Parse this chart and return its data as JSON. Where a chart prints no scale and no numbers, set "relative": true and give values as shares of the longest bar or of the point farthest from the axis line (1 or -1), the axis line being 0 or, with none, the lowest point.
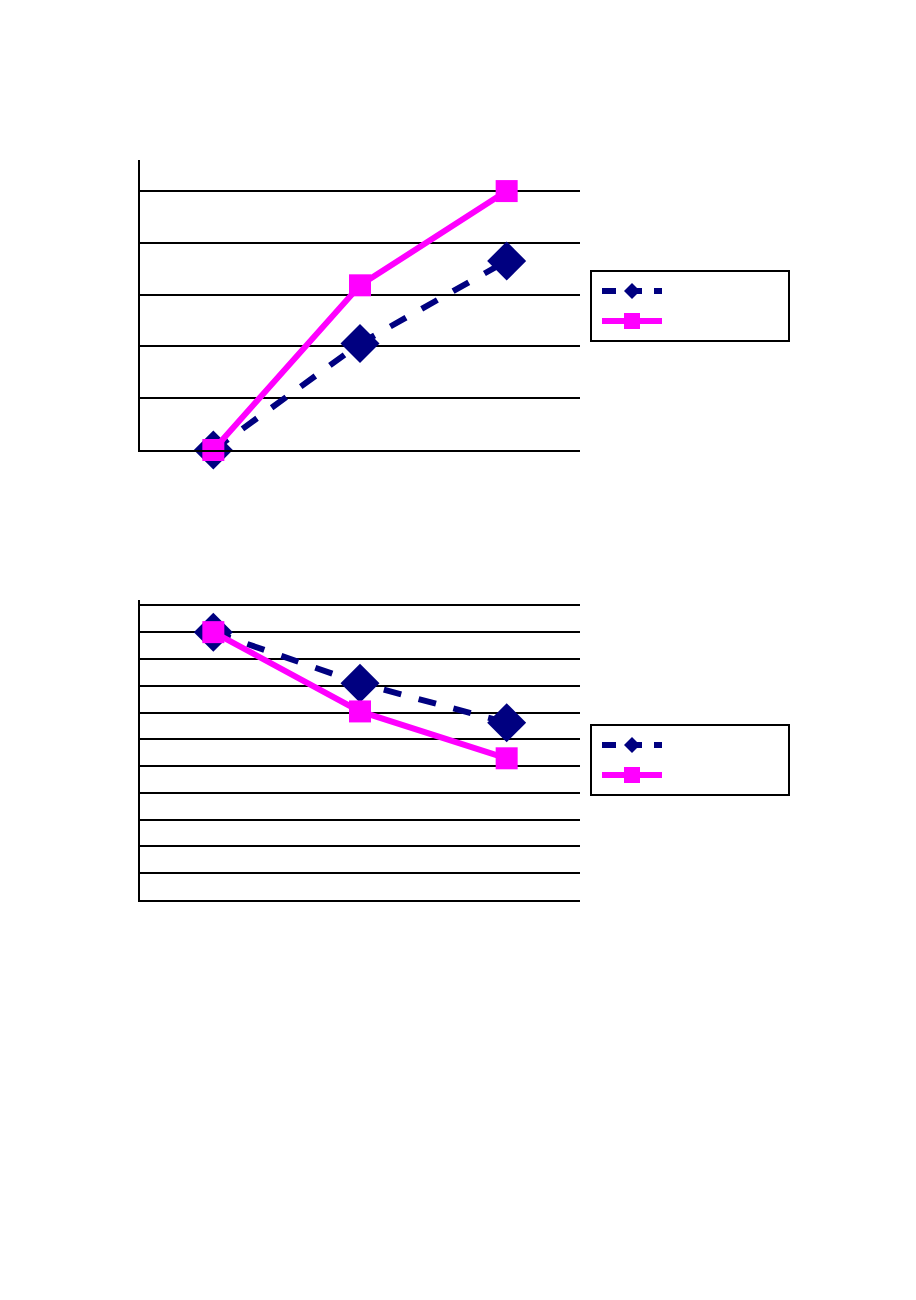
{
  "chart_data": [
    {
      "type": "line",
      "relative": true,
      "categories": [
        null,
        null,
        null
      ],
      "grid": "y",
      "series": [
        {
          "color": "#000080",
          "values": [
            0,
            0.411,
            0.73
          ],
          "marker": "diamond",
          "line_style": "dashed"
        },
        {
          "color": "#ff00ff",
          "values": [
            0,
            0.636,
            1
          ],
          "marker": "square",
          "line_style": "solid"
        }
      ]
    },
    {
      "type": "line",
      "relative": true,
      "categories": [
        null,
        null,
        null
      ],
      "grid": "y",
      "series": [
        {
          "color": "#000080",
          "values": [
            1,
            0.809,
            0.662
          ],
          "marker": "diamond",
          "line_style": "dashed"
        },
        {
          "color": "#ff00ff",
          "values": [
            1,
            0.704,
            0.529
          ],
          "marker": "square",
          "line_style": "solid"
        }
      ]
    }
  ]
}
